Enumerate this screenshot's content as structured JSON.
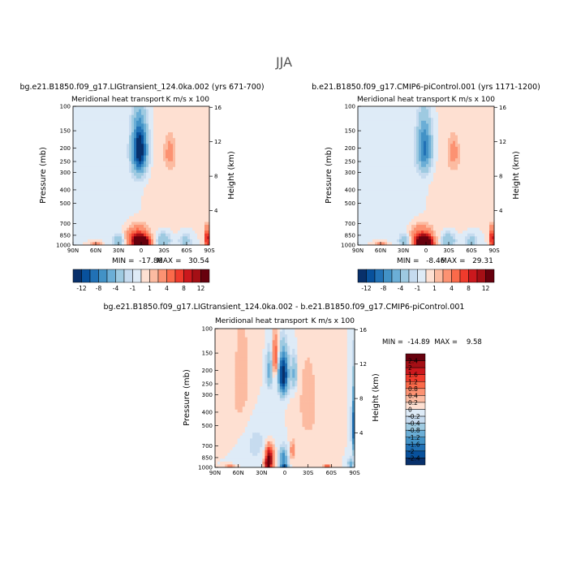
{
  "figure_title": "JJA",
  "chart_data": [
    {
      "type": "contour",
      "id": "panel-a",
      "case_title": "bg.e21.B1850.f09_g17.LIGtransient_124.0ka.002 (yrs 671-700)",
      "subtitle_left": "Meridional heat transport",
      "subtitle_right": "K m/s x 100",
      "ylabel": "Pressure (mb)",
      "ylabel_right": "Height (km)",
      "x_ticks": [
        "90N",
        "60N",
        "30N",
        "0",
        "30S",
        "60S",
        "90S"
      ],
      "x_range": [
        90,
        -90
      ],
      "p_ticks": [
        100,
        150,
        200,
        250,
        300,
        400,
        500,
        700,
        850,
        1000
      ],
      "p_range": [
        100,
        1000
      ],
      "height_ticks": [
        4,
        8,
        12,
        16
      ],
      "min_label": "MIN =  -17.86",
      "max_label": "MAX =   30.54",
      "min": -17.86,
      "max": 30.54,
      "colorbar_labels": [
        "-12",
        "-8",
        "-4",
        "-1",
        "1",
        "4",
        "8",
        "12"
      ],
      "colorbar_levels": [
        -12,
        -10,
        -8,
        -6,
        -4,
        -2,
        -1,
        0,
        1,
        2,
        4,
        6,
        8,
        10,
        12
      ],
      "features": [
        {
          "lat": 2,
          "p": 205,
          "lat_width": 9,
          "p_width": 85,
          "amp": -15
        },
        {
          "lat": -38,
          "p": 215,
          "lat_width": 7,
          "p_width": 55,
          "amp": 2.5
        },
        {
          "lat": -40,
          "p": 450,
          "lat_width": 30,
          "p_width": 300,
          "amp": 0.8
        },
        {
          "lat": 0,
          "p": 960,
          "lat_width": 9,
          "p_width": 90,
          "amp": 26
        },
        {
          "lat": 5,
          "p": 890,
          "lat_width": 14,
          "p_width": 160,
          "amp": 7
        },
        {
          "lat": 60,
          "p": 990,
          "lat_width": 7,
          "p_width": 40,
          "amp": 4
        },
        {
          "lat": 30,
          "p": 930,
          "lat_width": 8,
          "p_width": 110,
          "amp": -3.5
        },
        {
          "lat": -30,
          "p": 930,
          "lat_width": 9,
          "p_width": 120,
          "amp": -4
        },
        {
          "lat": -58,
          "p": 940,
          "lat_width": 8,
          "p_width": 120,
          "amp": -3
        },
        {
          "lat": -87,
          "p": 900,
          "lat_width": 3,
          "p_width": 150,
          "amp": 10
        },
        {
          "lat": 55,
          "p": 400,
          "lat_width": 15,
          "p_width": 400,
          "amp": -0.6
        },
        {
          "lat": 20,
          "p": 430,
          "lat_width": 20,
          "p_width": 380,
          "amp": -0.5
        }
      ]
    },
    {
      "type": "contour",
      "id": "panel-b",
      "case_title": "b.e21.B1850.f09_g17.CMIP6-piControl.001 (yrs 1171-1200)",
      "subtitle_left": "Meridional heat transport",
      "subtitle_right": "K m/s x 100",
      "ylabel": "Pressure (mb)",
      "ylabel_right": "Height (km)",
      "x_ticks": [
        "90N",
        "60N",
        "30N",
        "0",
        "30S",
        "60S",
        "90S"
      ],
      "x_range": [
        90,
        -90
      ],
      "p_ticks": [
        100,
        150,
        200,
        250,
        300,
        400,
        500,
        700,
        850,
        1000
      ],
      "p_range": [
        100,
        1000
      ],
      "height_ticks": [
        4,
        8,
        12,
        16
      ],
      "min_label": "MIN =   -8.46",
      "max_label": "MAX =   29.31",
      "min": -8.46,
      "max": 29.31,
      "colorbar_labels": [
        "-12",
        "-8",
        "-4",
        "-1",
        "1",
        "4",
        "8",
        "12"
      ],
      "colorbar_levels": [
        -12,
        -10,
        -8,
        -6,
        -4,
        -2,
        -1,
        0,
        1,
        2,
        4,
        6,
        8,
        10,
        12
      ],
      "features": [
        {
          "lat": 2,
          "p": 200,
          "lat_width": 9,
          "p_width": 85,
          "amp": -8.5
        },
        {
          "lat": -36,
          "p": 215,
          "lat_width": 7,
          "p_width": 55,
          "amp": 2.5
        },
        {
          "lat": -40,
          "p": 450,
          "lat_width": 30,
          "p_width": 300,
          "amp": 0.8
        },
        {
          "lat": 2,
          "p": 965,
          "lat_width": 9,
          "p_width": 90,
          "amp": 26
        },
        {
          "lat": 6,
          "p": 890,
          "lat_width": 14,
          "p_width": 160,
          "amp": 7
        },
        {
          "lat": 60,
          "p": 990,
          "lat_width": 7,
          "p_width": 40,
          "amp": 4
        },
        {
          "lat": 28,
          "p": 930,
          "lat_width": 8,
          "p_width": 110,
          "amp": -3.5
        },
        {
          "lat": -30,
          "p": 930,
          "lat_width": 9,
          "p_width": 120,
          "amp": -4
        },
        {
          "lat": -60,
          "p": 940,
          "lat_width": 8,
          "p_width": 120,
          "amp": -3
        },
        {
          "lat": -87,
          "p": 900,
          "lat_width": 3,
          "p_width": 150,
          "amp": 10
        },
        {
          "lat": 55,
          "p": 400,
          "lat_width": 15,
          "p_width": 400,
          "amp": -0.6
        },
        {
          "lat": 20,
          "p": 430,
          "lat_width": 20,
          "p_width": 380,
          "amp": -0.5
        }
      ]
    },
    {
      "type": "contour",
      "id": "panel-diff",
      "case_title": "bg.e21.B1850.f09_g17.LIGtransient_124.0ka.002 - b.e21.B1850.f09_g17.CMIP6-piControl.001",
      "subtitle_left": "Meridional heat transport",
      "subtitle_right": "K m/s x 100",
      "ylabel": "Pressure (mb)",
      "ylabel_right": "Height (km)",
      "x_ticks": [
        "90N",
        "60N",
        "30N",
        "0",
        "30S",
        "60S",
        "90S"
      ],
      "x_range": [
        90,
        -90
      ],
      "p_ticks": [
        100,
        150,
        200,
        250,
        300,
        400,
        500,
        700,
        850,
        1000
      ],
      "p_range": [
        100,
        1000
      ],
      "height_ticks": [
        4,
        8,
        12,
        16
      ],
      "minmax_label": "MIN =  -14.89  MAX =    9.58",
      "min": -14.89,
      "max": 9.58,
      "colorbar_labels": [
        "2.4",
        "2",
        "1.6",
        "1.2",
        "0.8",
        "0.4",
        "0.2",
        "0",
        "-0.2",
        "-0.4",
        "-0.8",
        "-1.2",
        "-1.6",
        "-2",
        "-2.4"
      ],
      "colorbar_levels": [
        -2.4,
        -2,
        -1.6,
        -1.2,
        -0.8,
        -0.4,
        -0.2,
        0,
        0.2,
        0.4,
        0.8,
        1.2,
        1.6,
        2,
        2.4
      ],
      "features": [
        {
          "lat": 2,
          "p": 215,
          "lat_width": 6,
          "p_width": 70,
          "amp": -3.0
        },
        {
          "lat": 12,
          "p": 160,
          "lat_width": 4,
          "p_width": 50,
          "amp": 1.2
        },
        {
          "lat": 20,
          "p": 200,
          "lat_width": 4,
          "p_width": 60,
          "amp": -1.0
        },
        {
          "lat": -12,
          "p": 210,
          "lat_width": 4,
          "p_width": 60,
          "amp": -0.9
        },
        {
          "lat": 20,
          "p": 850,
          "lat_width": 5,
          "p_width": 150,
          "amp": 2.6
        },
        {
          "lat": 22,
          "p": 960,
          "lat_width": 4,
          "p_width": 70,
          "amp": 1.8
        },
        {
          "lat": 2,
          "p": 880,
          "lat_width": 5,
          "p_width": 150,
          "amp": -1.6
        },
        {
          "lat": 0,
          "p": 990,
          "lat_width": 5,
          "p_width": 40,
          "amp": -1.4
        },
        {
          "lat": -10,
          "p": 760,
          "lat_width": 3,
          "p_width": 120,
          "amp": 0.7
        },
        {
          "lat": -55,
          "p": 990,
          "lat_width": 4,
          "p_width": 30,
          "amp": 1.5
        },
        {
          "lat": 70,
          "p": 990,
          "lat_width": 6,
          "p_width": 30,
          "amp": 0.8
        },
        {
          "lat": -88,
          "p": 500,
          "lat_width": 2,
          "p_width": 250,
          "amp": -2.0
        },
        {
          "lat": -85,
          "p": 950,
          "lat_width": 3,
          "p_width": 80,
          "amp": -1.2
        },
        {
          "lat": 55,
          "p": 300,
          "lat_width": 18,
          "p_width": 350,
          "amp": 0.3
        },
        {
          "lat": -30,
          "p": 350,
          "lat_width": 15,
          "p_width": 300,
          "amp": 0.3
        },
        {
          "lat": 40,
          "p": 650,
          "lat_width": 20,
          "p_width": 300,
          "amp": -0.3
        }
      ]
    }
  ],
  "palettes": {
    "abs": [
      "#08306b",
      "#08519c",
      "#2171b5",
      "#4292c6",
      "#6baed6",
      "#9ecae1",
      "#c6dbef",
      "#deebf7",
      "#fee0d2",
      "#fcbba1",
      "#fc9272",
      "#fb6a4a",
      "#ef3b2c",
      "#cb181d",
      "#a50f15",
      "#67000d"
    ],
    "diff": [
      "#08306b",
      "#08519c",
      "#2171b5",
      "#4292c6",
      "#6baed6",
      "#9ecae1",
      "#c6dbef",
      "#deebf7",
      "#fee0d2",
      "#fcbba1",
      "#fc9272",
      "#fb6a4a",
      "#ef3b2c",
      "#cb181d",
      "#a50f15",
      "#67000d"
    ]
  }
}
